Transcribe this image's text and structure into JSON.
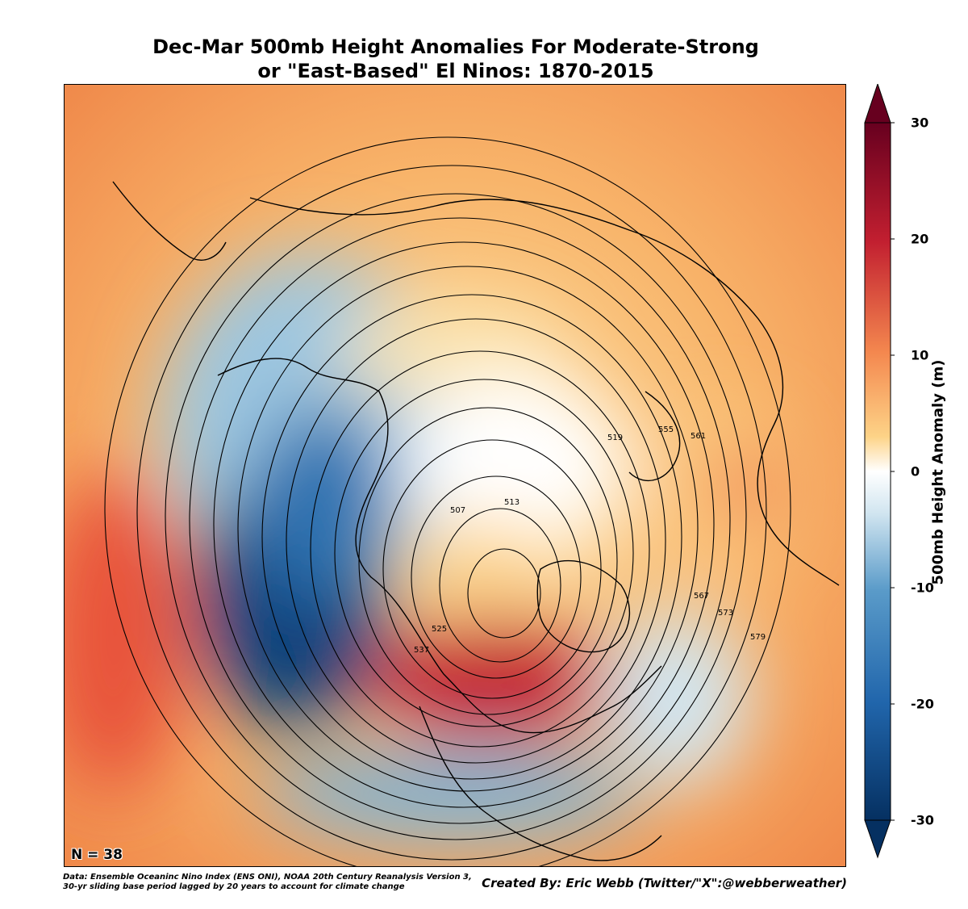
{
  "title": {
    "line1": "Dec-Mar 500mb Height Anomalies For Moderate-Strong",
    "line2": "or \"East-Based\" El Ninos: 1870-2015"
  },
  "map": {
    "sample_size_label": "N = 38",
    "contour_labels": [
      "507",
      "513",
      "519",
      "525",
      "537",
      "555",
      "561",
      "567",
      "573",
      "579"
    ]
  },
  "colorbar": {
    "label": "500mb Height Anomaly (m)",
    "ticks": [
      "30",
      "20",
      "10",
      "0",
      "-10",
      "-20",
      "-30"
    ],
    "range": [
      -30,
      30
    ],
    "colormap": "RdBu_r",
    "colors": {
      "max": "#67001f",
      "pos_strong": "#c21f30",
      "pos_mid": "#f4884f",
      "pos_weak": "#fdd387",
      "zero": "#ffffff",
      "neg_weak": "#d1e5f0",
      "neg_mid": "#5a9bc9",
      "neg_strong": "#2166ac",
      "min": "#053061"
    }
  },
  "footer": {
    "data_line1": "Data: Ensemble Oceaninc Nino Index (ENS ONI), NOAA 20th Century Reanalysis Version 3,",
    "data_line2": " 30-yr sliding base period lagged by 20 years to account for climate change",
    "credit": "Created By: Eric Webb (Twitter/\"X\":@webberweather)"
  }
}
